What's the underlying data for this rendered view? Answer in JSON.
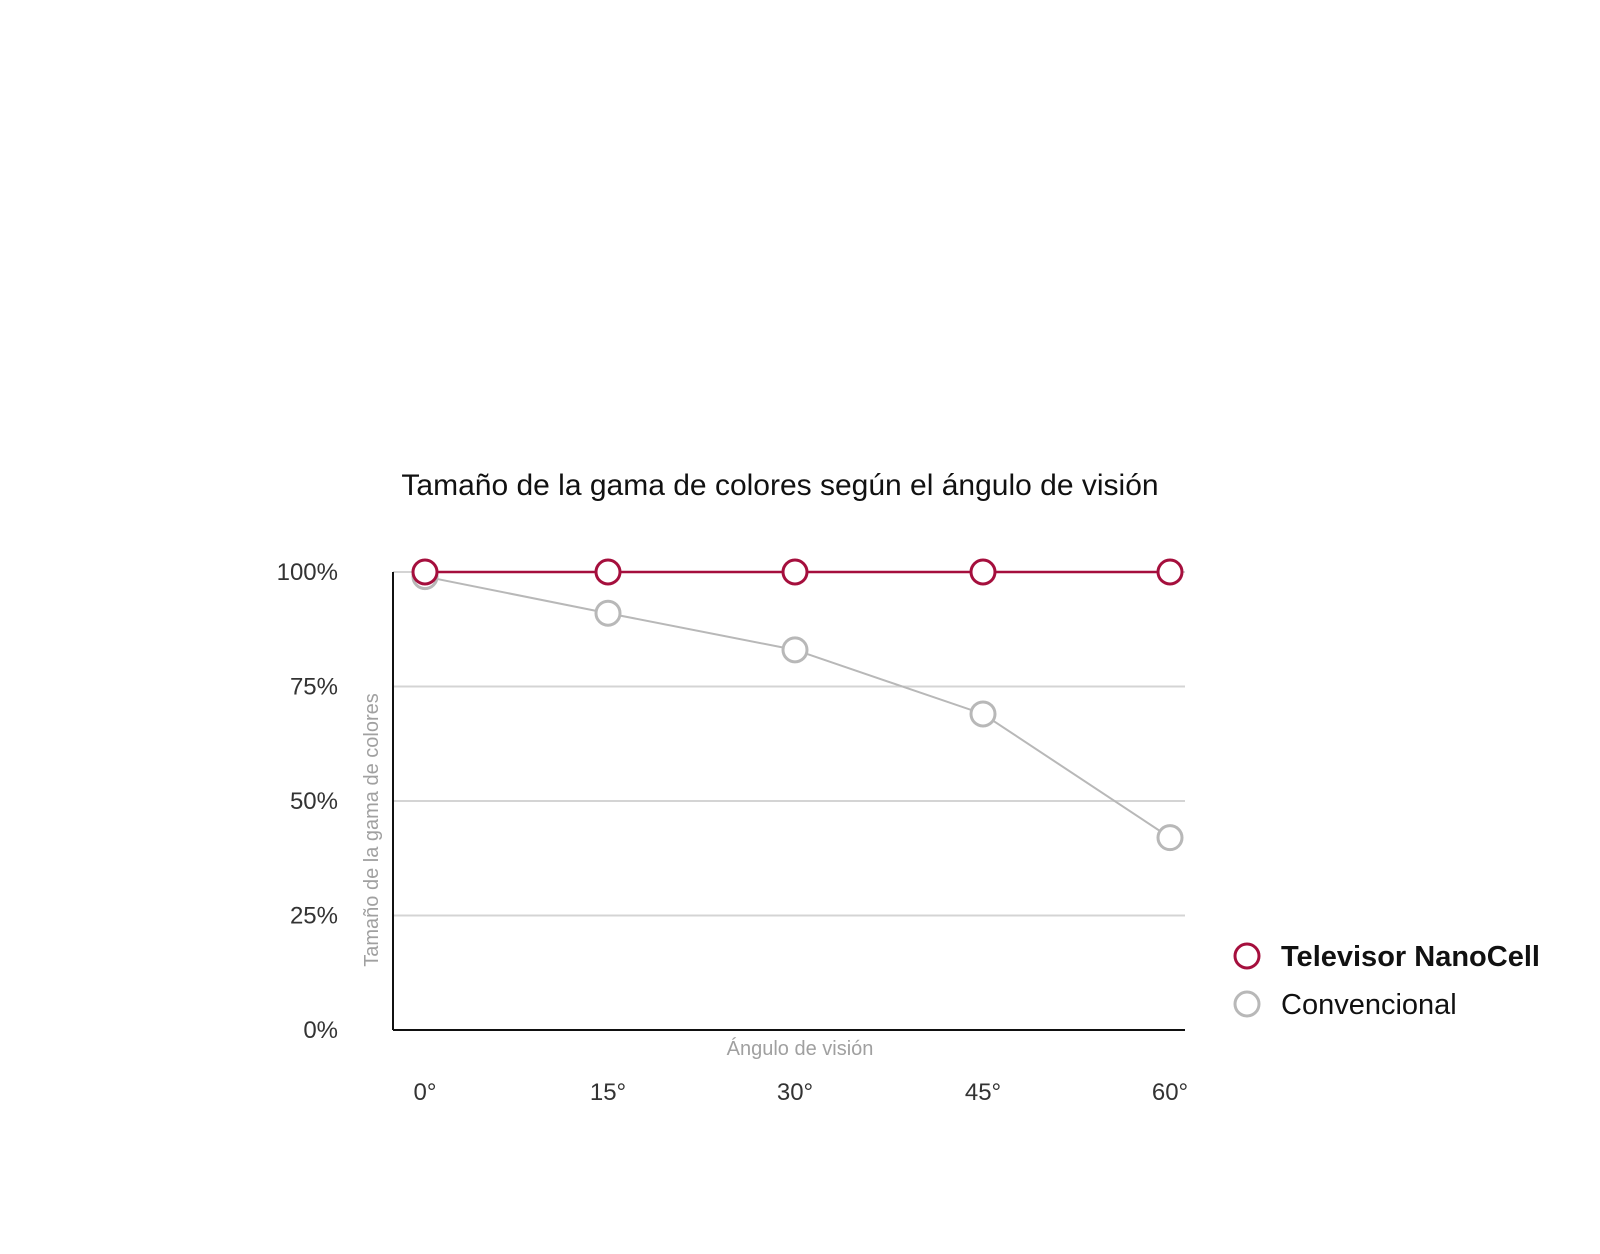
{
  "chart_data": {
    "type": "line",
    "title": "Tamaño de la gama de colores según el ángulo de visión",
    "xlabel": "Ángulo de visión",
    "ylabel": "Tamaño de la gama de colores",
    "x": [
      "0°",
      "15°",
      "30°",
      "45°",
      "60°"
    ],
    "yticks": [
      "0%",
      "25%",
      "50%",
      "75%",
      "100%"
    ],
    "ylim": [
      0,
      100
    ],
    "grid": true,
    "legend_position": "bottom-right",
    "series": [
      {
        "name": "Televisor NanoCell",
        "values": [
          100,
          100,
          100,
          100,
          100
        ],
        "color": "#a50f3d",
        "bold": true
      },
      {
        "name": "Convencional",
        "values": [
          99,
          91,
          83,
          69,
          42
        ],
        "color": "#b8b8b8",
        "bold": false
      }
    ]
  }
}
